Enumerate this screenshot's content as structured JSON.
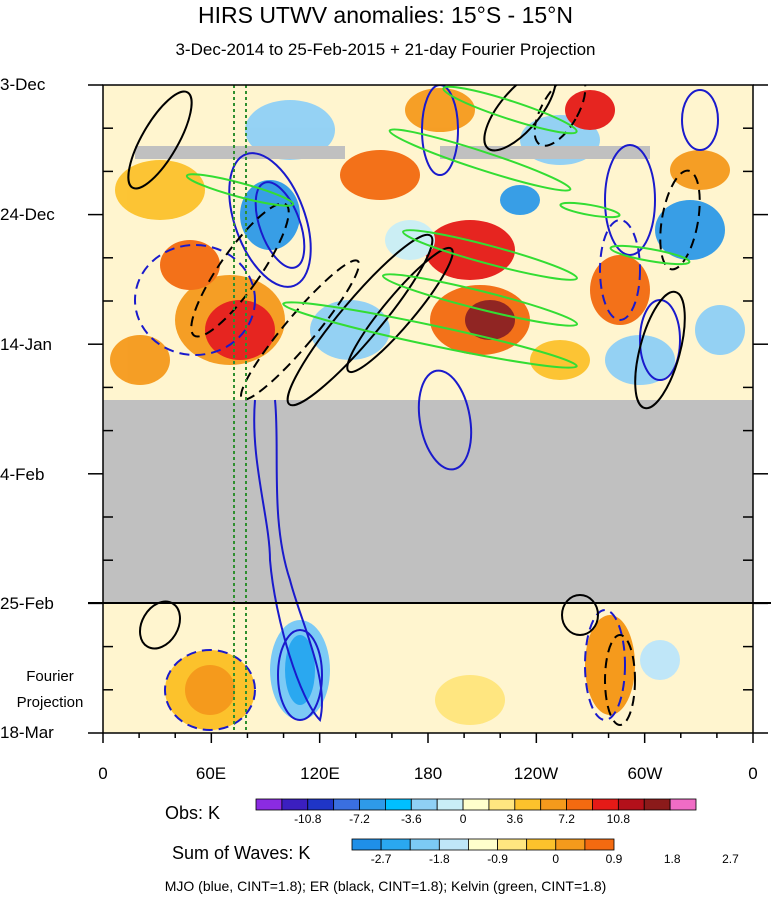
{
  "chart_data": {
    "type": "heatmap",
    "title": "HIRS UTWV anomalies: 15°S - 15°N",
    "subtitle": "3-Dec-2014 to 25-Feb-2015 + 21-day Fourier Projection",
    "y_ticks": [
      "3-Dec",
      "24-Dec",
      "14-Jan",
      "4-Feb",
      "25-Feb",
      "18-Mar"
    ],
    "y_range": [
      "3-Dec-2014",
      "18-Mar-2015"
    ],
    "x_ticks": [
      "0",
      "60E",
      "120E",
      "180",
      "120W",
      "60W",
      "0"
    ],
    "x_range_lon": [
      0,
      360
    ],
    "projection_label_line1": "Fourier",
    "projection_label_line2": "Projection",
    "missing_data_color": "#c0c0c0",
    "colorbar_obs": {
      "label": "Obs: K",
      "tick_labels": [
        "-10.8",
        "-7.2",
        "-3.6",
        "0",
        "3.6",
        "7.2",
        "10.8"
      ],
      "colors": [
        "#8b2be2",
        "#3b1fbf",
        "#1f35c7",
        "#3a6fe0",
        "#2e9ae8",
        "#00bfff",
        "#8fd0f5",
        "#c9eef7",
        "#ffffcc",
        "#ffe680",
        "#fcc22c",
        "#f59a1c",
        "#f36a10",
        "#e51a17",
        "#b3101a",
        "#8b1a1a",
        "#f06cc5"
      ]
    },
    "colorbar_waves": {
      "label": "Sum of Waves: K",
      "tick_labels": [
        "-2.7",
        "-1.8",
        "-0.9",
        "0",
        "0.9",
        "1.8",
        "2.7"
      ],
      "colors": [
        "#1f8fe8",
        "#2aa8f0",
        "#7ccaf5",
        "#bfe6f8",
        "#ffffcc",
        "#ffe680",
        "#fcc22c",
        "#f59a1c",
        "#f36a10"
      ]
    },
    "legend_text": "MJO (blue, CINT=1.8); ER (black, CINT=1.8); Kelvin (green, CINT=1.8)",
    "series_colors": {
      "mjo": "#1a1acc",
      "er": "#000000",
      "kelvin": "#33dd33",
      "reference_lines": "#2f8f2f"
    }
  }
}
